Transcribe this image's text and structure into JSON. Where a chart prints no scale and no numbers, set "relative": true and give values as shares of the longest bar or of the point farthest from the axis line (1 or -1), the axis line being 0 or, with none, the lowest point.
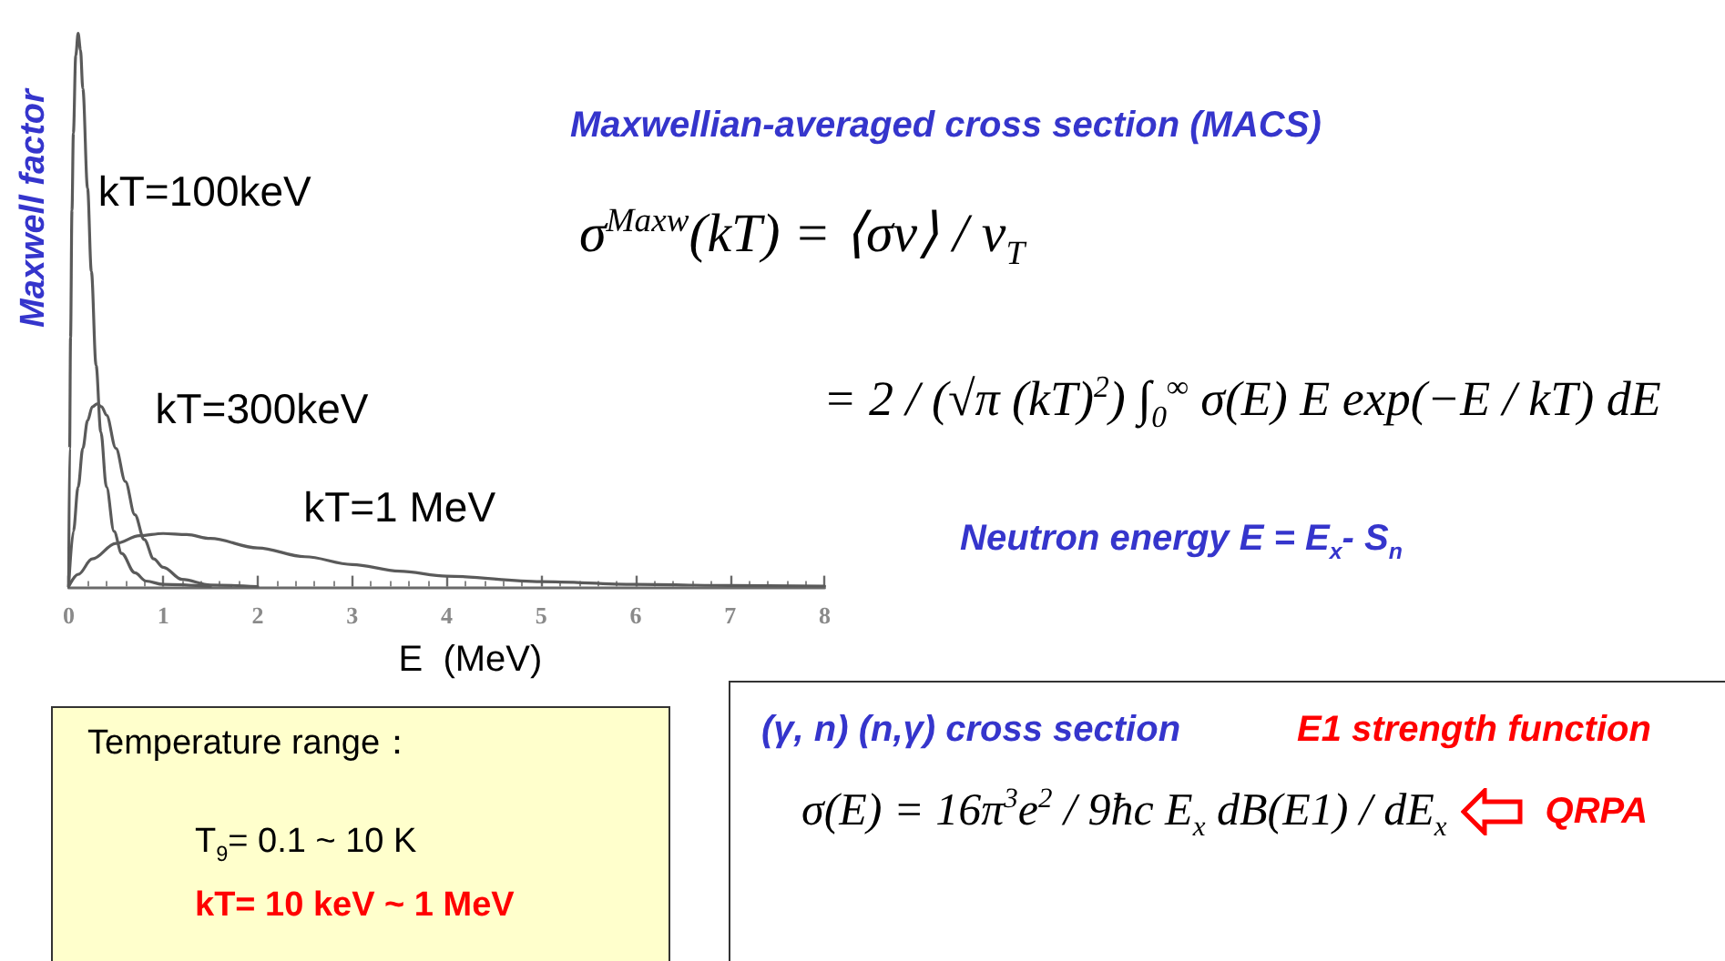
{
  "chart_data": {
    "type": "line",
    "relative": true,
    "xlabel": "E  (MeV)",
    "ylabel": "Maxwell factor",
    "xlim": [
      0,
      8
    ],
    "xticks": [
      0,
      1,
      2,
      3,
      4,
      5,
      6,
      7,
      8
    ],
    "marker": "none",
    "line_style": "solid",
    "series": [
      {
        "name": "kT=100keV",
        "color": "#5a5a5a",
        "x": [
          0,
          0.01,
          0.02,
          0.035,
          0.05,
          0.075,
          0.1,
          0.125,
          0.15,
          0.2,
          0.24,
          0.29,
          0.34,
          0.4,
          0.48,
          0.56,
          0.7,
          0.82,
          1,
          1.5
        ],
        "values": [
          0,
          0.25,
          0.45,
          0.68,
          0.82,
          0.96,
          1,
          0.97,
          0.9,
          0.72,
          0.57,
          0.4,
          0.28,
          0.18,
          0.1,
          0.06,
          0.025,
          0.01,
          0.004,
          0
        ]
      },
      {
        "name": "kT=300keV",
        "color": "#5a5a5a",
        "x": [
          0,
          0.05,
          0.1,
          0.15,
          0.2,
          0.25,
          0.3,
          0.35,
          0.4,
          0.5,
          0.6,
          0.7,
          0.8,
          0.9,
          1,
          1.2,
          1.5,
          2
        ],
        "values": [
          0,
          0.1,
          0.18,
          0.25,
          0.3,
          0.325,
          0.33,
          0.325,
          0.31,
          0.25,
          0.19,
          0.13,
          0.085,
          0.05,
          0.035,
          0.013,
          0.003,
          0
        ]
      },
      {
        "name": "kT=1 MeV",
        "color": "#5a5a5a",
        "x": [
          0,
          0.1,
          0.25,
          0.5,
          0.75,
          1,
          1.25,
          1.5,
          2,
          2.5,
          3,
          3.5,
          4,
          5,
          6,
          7,
          8
        ],
        "values": [
          0,
          0.022,
          0.05,
          0.078,
          0.092,
          0.096,
          0.094,
          0.087,
          0.07,
          0.054,
          0.04,
          0.028,
          0.019,
          0.009,
          0.004,
          0.002,
          0.001
        ]
      }
    ],
    "annotations": [
      "Maxwellian-averaged cross section (MACS)",
      "σ$^{Maxw}$(kT) = ⟨σv⟩ / v$_{T}$",
      "= 2 / (√π (kT)$^{2}$) ∫$_{0}$$^{∞}$ σ(E) E exp(−E / kT) dE",
      "Neutron energy  E = E$_{x}$- S$_{n}$",
      "Temperature range：",
      "T$_{9}$= 0.1 ~ 10  K",
      "kT= 10 keV ~ 1 MeV",
      "(γ, n) (n,γ) cross section",
      "E1 strength function",
      "σ(E) = 16π$^{3}$e$^{2}$ / 9ħc  E$_{x}$  dB(E1) / dE$_{x}$",
      "QRPA"
    ]
  }
}
